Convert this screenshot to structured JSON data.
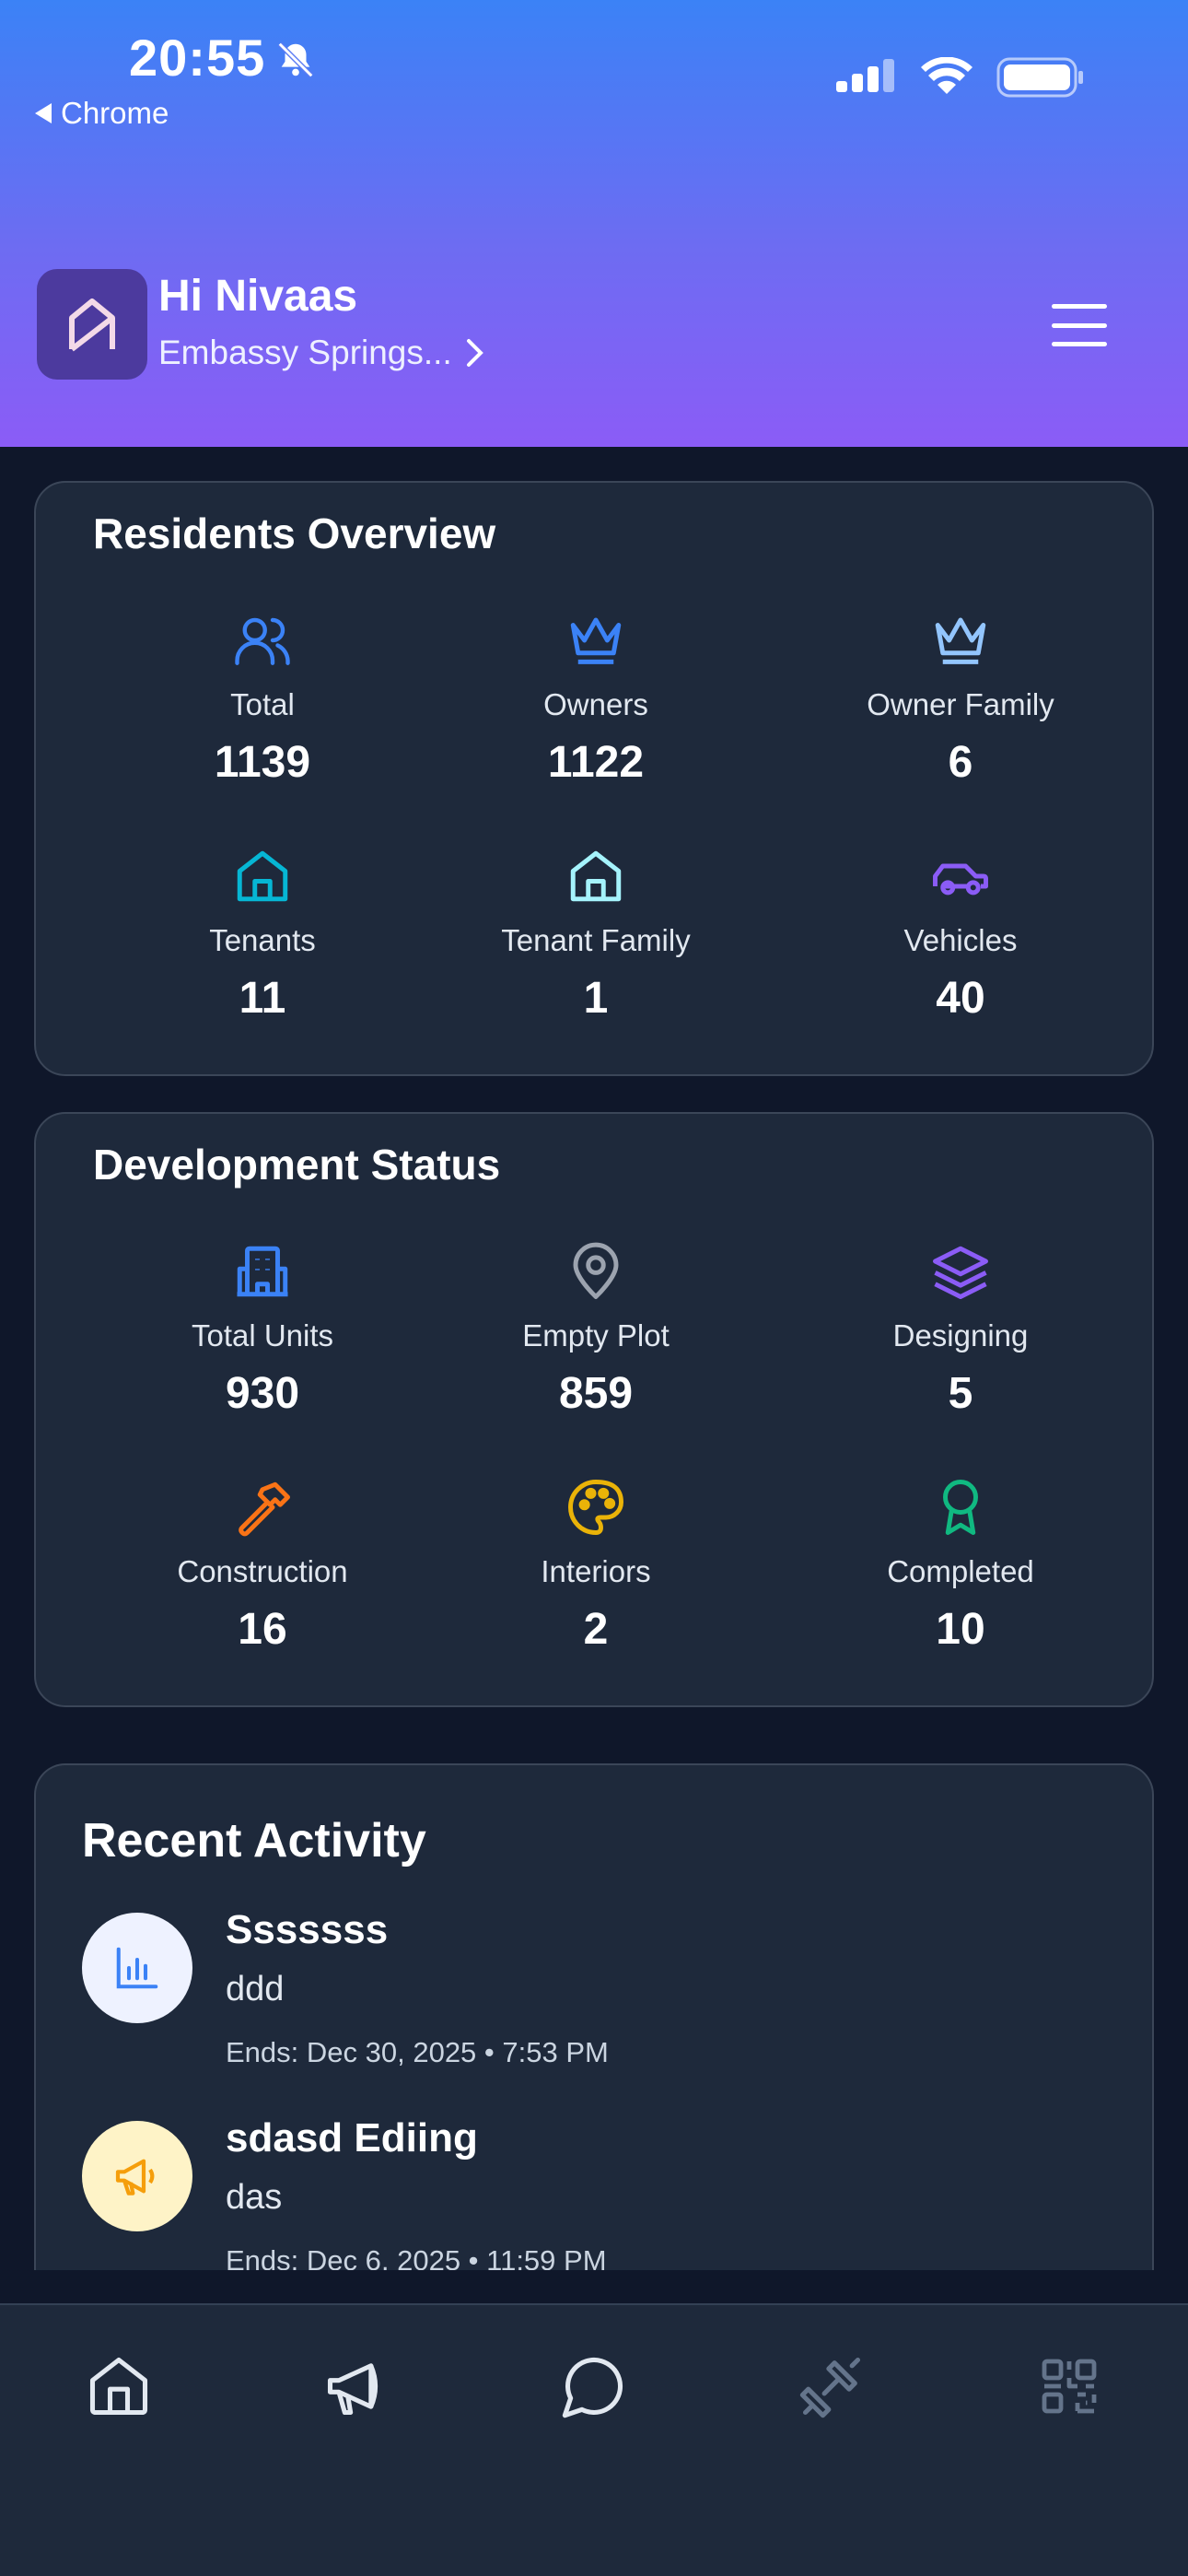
{
  "status_bar": {
    "time": "20:55",
    "back_label": "Chrome"
  },
  "header": {
    "greeting": "Hi Nivaas",
    "community": "Embassy Springs...",
    "logo_letter": "N"
  },
  "residents": {
    "title": "Residents Overview",
    "stats": [
      {
        "label": "Total",
        "value": "1139",
        "icon": "users-icon",
        "color": "#3b82f6"
      },
      {
        "label": "Owners",
        "value": "1122",
        "icon": "crown-icon",
        "color": "#3b82f6"
      },
      {
        "label": "Owner Family",
        "value": "6",
        "icon": "crown-icon",
        "color": "#93c5fd"
      },
      {
        "label": "Tenants",
        "value": "11",
        "icon": "house-icon",
        "color": "#06b6d4"
      },
      {
        "label": "Tenant Family",
        "value": "1",
        "icon": "house-icon",
        "color": "#a5f3fc"
      },
      {
        "label": "Vehicles",
        "value": "40",
        "icon": "car-icon",
        "color": "#8b5cf6"
      }
    ]
  },
  "development": {
    "title": "Development Status",
    "stats": [
      {
        "label": "Total Units",
        "value": "930",
        "icon": "building-icon",
        "color": "#3b82f6"
      },
      {
        "label": "Empty Plot",
        "value": "859",
        "icon": "map-pin-icon",
        "color": "#9ca3af"
      },
      {
        "label": "Designing",
        "value": "5",
        "icon": "layers-icon",
        "color": "#8b5cf6"
      },
      {
        "label": "Construction",
        "value": "16",
        "icon": "hammer-icon",
        "color": "#f97316"
      },
      {
        "label": "Interiors",
        "value": "2",
        "icon": "palette-icon",
        "color": "#eab308"
      },
      {
        "label": "Completed",
        "value": "10",
        "icon": "award-icon",
        "color": "#10b981"
      }
    ]
  },
  "activity": {
    "title": "Recent Activity",
    "items": [
      {
        "name": "Sssssss",
        "desc": "ddd",
        "ends": "Ends: Dec 30, 2025 • 7:53 PM",
        "icon": "bar-chart-icon",
        "avatar_bg": "#eef2ff",
        "icon_color": "#3b82f6"
      },
      {
        "name": "sdasd Ediing",
        "desc": "das",
        "ends": "Ends: Dec 6, 2025 • 11:59 PM",
        "icon": "megaphone-icon",
        "avatar_bg": "#fef3c7",
        "icon_color": "#f59e0b"
      }
    ]
  },
  "bottom_nav": [
    {
      "name": "nav-home",
      "icon": "home-icon"
    },
    {
      "name": "nav-announcements",
      "icon": "megaphone-icon"
    },
    {
      "name": "nav-chat",
      "icon": "chat-icon"
    },
    {
      "name": "nav-gym",
      "icon": "dumbbell-icon"
    },
    {
      "name": "nav-qr",
      "icon": "qr-code-icon"
    }
  ]
}
